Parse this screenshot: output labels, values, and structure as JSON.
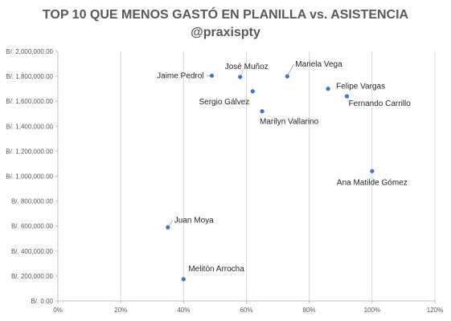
{
  "chart_data": {
    "type": "scatter",
    "title": "TOP 10 QUE MENOS GASTÓ EN PLANILLA vs. ASISTENCIA",
    "subtitle": "@praxispty",
    "xlim": [
      0,
      1.2
    ],
    "ylim": [
      0,
      2000000
    ],
    "x_ticks": [
      {
        "value": 0,
        "label": "0%"
      },
      {
        "value": 0.2,
        "label": "20%"
      },
      {
        "value": 0.4,
        "label": "40%"
      },
      {
        "value": 0.6,
        "label": "60%"
      },
      {
        "value": 0.8,
        "label": "80%"
      },
      {
        "value": 1.0,
        "label": "100%"
      },
      {
        "value": 1.2,
        "label": "120%"
      }
    ],
    "y_ticks": [
      {
        "value": 0,
        "label": "B/. 0.00"
      },
      {
        "value": 200000,
        "label": "B/. 200,000.00"
      },
      {
        "value": 400000,
        "label": "B/. 400,000.00"
      },
      {
        "value": 600000,
        "label": "B/. 600,000.00"
      },
      {
        "value": 800000,
        "label": "B/. 800,000.00"
      },
      {
        "value": 1000000,
        "label": "B/. 1,000,000.00"
      },
      {
        "value": 1200000,
        "label": "B/. 1,200,000.00"
      },
      {
        "value": 1400000,
        "label": "B/. 1,400,000.00"
      },
      {
        "value": 1600000,
        "label": "B/. 1,600,000.00"
      },
      {
        "value": 1800000,
        "label": "B/. 1,800,000.00"
      },
      {
        "value": 2000000,
        "label": "B/. 2,000,000.00"
      }
    ],
    "grid": {
      "vertical": true,
      "horizontal": false
    },
    "marker_color": "#4472C4",
    "points": [
      {
        "label": "Jaime Pedrol",
        "x": 0.49,
        "y": 1805000
      },
      {
        "label": "José Muñoz",
        "x": 0.58,
        "y": 1795000
      },
      {
        "label": "Mariela Vega",
        "x": 0.73,
        "y": 1800000
      },
      {
        "label": "Sergio Gálvez",
        "x": 0.62,
        "y": 1680000
      },
      {
        "label": "Felipe Vargas",
        "x": 0.86,
        "y": 1700000
      },
      {
        "label": "Fernando Carrillo",
        "x": 0.92,
        "y": 1640000
      },
      {
        "label": "Marilyn Vallarino",
        "x": 0.65,
        "y": 1520000
      },
      {
        "label": "Ana Matilde Gómez",
        "x": 1.0,
        "y": 1040000
      },
      {
        "label": "Juan Moya",
        "x": 0.35,
        "y": 590000
      },
      {
        "label": "Melitón Arrocha",
        "x": 0.4,
        "y": 175000
      }
    ]
  }
}
